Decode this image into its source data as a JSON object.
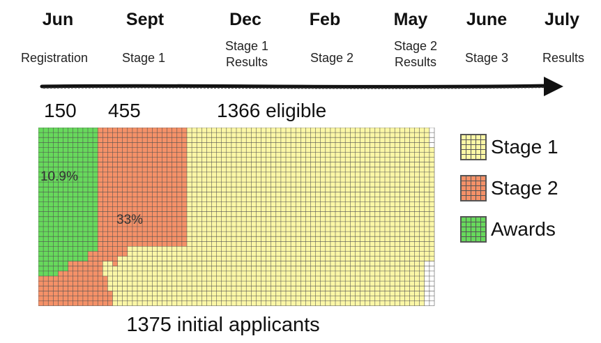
{
  "timeline": {
    "months": [
      "Jun",
      "Sept",
      "Dec",
      "Feb",
      "May",
      "June",
      "July"
    ],
    "events": [
      [
        "Registration"
      ],
      [
        "Stage 1"
      ],
      [
        "Stage 1",
        "Results"
      ],
      [
        "Stage 2"
      ],
      [
        "Stage 2",
        "Results"
      ],
      [
        "Stage 3"
      ],
      [
        "Results"
      ]
    ]
  },
  "counts": {
    "awards": "150",
    "stage2": "455",
    "eligible": "1366 eligible"
  },
  "percentages": {
    "awards": "10.9%",
    "stage2": "33%"
  },
  "bottom_label": "1375 initial applicants",
  "legend": [
    {
      "label": "Stage 1",
      "color": "#fbf7a6"
    },
    {
      "label": "Stage 2",
      "color": "#f59168"
    },
    {
      "label": "Awards",
      "color": "#67d95c"
    }
  ],
  "colors": {
    "stage1": "#fbf7a6",
    "stage2": "#f59168",
    "awards": "#67d95c",
    "gridline": "#4f4f4f",
    "arrow": "#111111"
  }
}
